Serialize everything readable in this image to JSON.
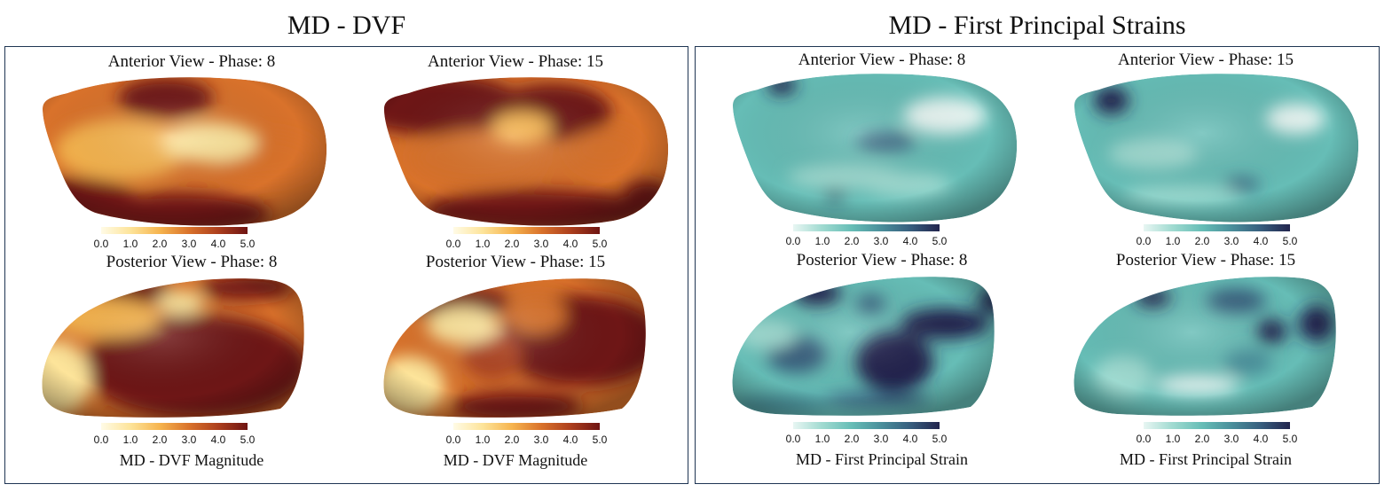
{
  "sections": [
    {
      "title": "MD - DVF",
      "colormap": "dvf",
      "views": [
        {
          "title": "Anterior View - Phase: 8",
          "shape": "anterior",
          "caption": ""
        },
        {
          "title": "Anterior View - Phase: 15",
          "shape": "anterior",
          "caption": ""
        },
        {
          "title": "Posterior View - Phase: 8",
          "shape": "posterior",
          "caption": "MD - DVF Magnitude"
        },
        {
          "title": "Posterior View - Phase: 15",
          "shape": "posterior",
          "caption": "MD - DVF Magnitude"
        }
      ]
    },
    {
      "title": "MD - First Principal Strains",
      "colormap": "strain",
      "views": [
        {
          "title": "Anterior View - Phase: 8",
          "shape": "anterior",
          "caption": ""
        },
        {
          "title": "Anterior View - Phase: 15",
          "shape": "anterior",
          "caption": ""
        },
        {
          "title": "Posterior View - Phase: 8",
          "shape": "posterior",
          "caption": "MD - First Principal Strain"
        },
        {
          "title": "Posterior View - Phase: 15",
          "shape": "posterior",
          "caption": "MD - First Principal Strain"
        }
      ]
    }
  ],
  "colorbar_ticks": [
    "0.0",
    "1.0",
    "2.0",
    "3.0",
    "4.0",
    "5.0"
  ],
  "colors": {
    "panel_border": "#1f3553",
    "dvf": [
      "#6e1412",
      "#ad3f1d",
      "#d9722b",
      "#f6b44e",
      "#fde49a"
    ],
    "strain": [
      "#22244d",
      "#375e7e",
      "#4a8f9b",
      "#66bdb6",
      "#9fdad0",
      "#e8f6f3"
    ]
  }
}
